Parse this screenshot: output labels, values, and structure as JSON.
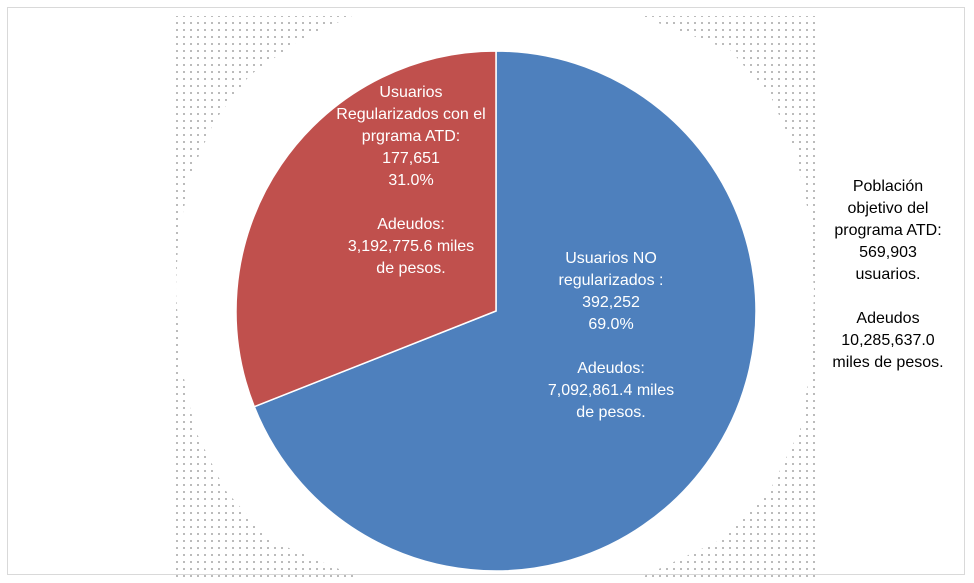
{
  "chart_data": {
    "type": "pie",
    "slices": [
      {
        "category": "Usuarios NO regularizados",
        "count": 392252,
        "percent": 69.0,
        "debt": 7092861.4,
        "color": "#4e80bd",
        "label_lines": [
          "Usuarios NO",
          "regularizados :",
          "392,252",
          "69.0%",
          "",
          "Adeudos:",
          "7,092,861.4 miles",
          "de pesos."
        ]
      },
      {
        "category": "Usuarios Regularizados con el prgrama ATD",
        "count": 177651,
        "percent": 31.0,
        "debt": 3192775.6,
        "color": "#c0504d",
        "label_lines": [
          "Usuarios",
          "Regularizados con el",
          "prgrama ATD:",
          "177,651",
          "31.0%",
          "",
          "Adeudos:",
          "3,192,775.6 miles",
          "de pesos."
        ]
      }
    ],
    "start_angle": "12 o'clock",
    "direction": "clockwise",
    "label_color": "#ffffff"
  },
  "annotation": {
    "lines": [
      "Población",
      "objetivo del",
      "programa ATD:",
      "569,903",
      "usuarios.",
      "",
      "Adeudos",
      "10,285,637.0",
      "miles de pesos."
    ]
  }
}
